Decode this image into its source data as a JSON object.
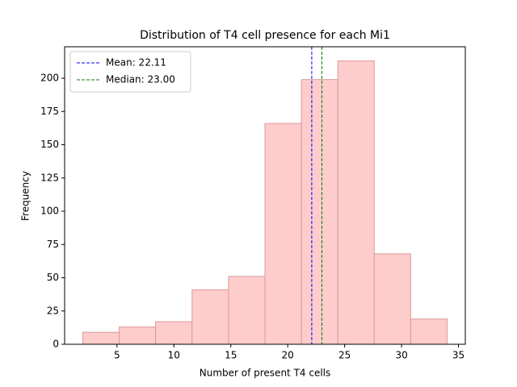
{
  "chart_data": {
    "type": "histogram",
    "title": "Distribution of T4 cell presence for each Mi1",
    "xlabel": "Number of present T4 cells",
    "ylabel": "Frequency",
    "bins": [
      2,
      5.2,
      8.4,
      11.6,
      14.8,
      18,
      21.2,
      24.4,
      27.6,
      30.8,
      34
    ],
    "values": [
      9,
      13,
      17,
      41,
      51,
      166,
      199,
      213,
      68,
      19
    ],
    "color": "#ffcccc",
    "edgecolor": "#d99a9a",
    "lines": [
      {
        "name": "Mean: 22.11",
        "value": 22.11,
        "color": "blue"
      },
      {
        "name": "Median: 23.00",
        "value": 23.0,
        "color": "green"
      }
    ],
    "legend": "upper left",
    "xlim": [
      0.4,
      35.6
    ],
    "ylim": [
      0,
      223.65
    ],
    "xticks": [
      5,
      10,
      15,
      20,
      25,
      30,
      35
    ],
    "yticks": [
      0,
      25,
      50,
      75,
      100,
      125,
      150,
      175,
      200
    ]
  }
}
